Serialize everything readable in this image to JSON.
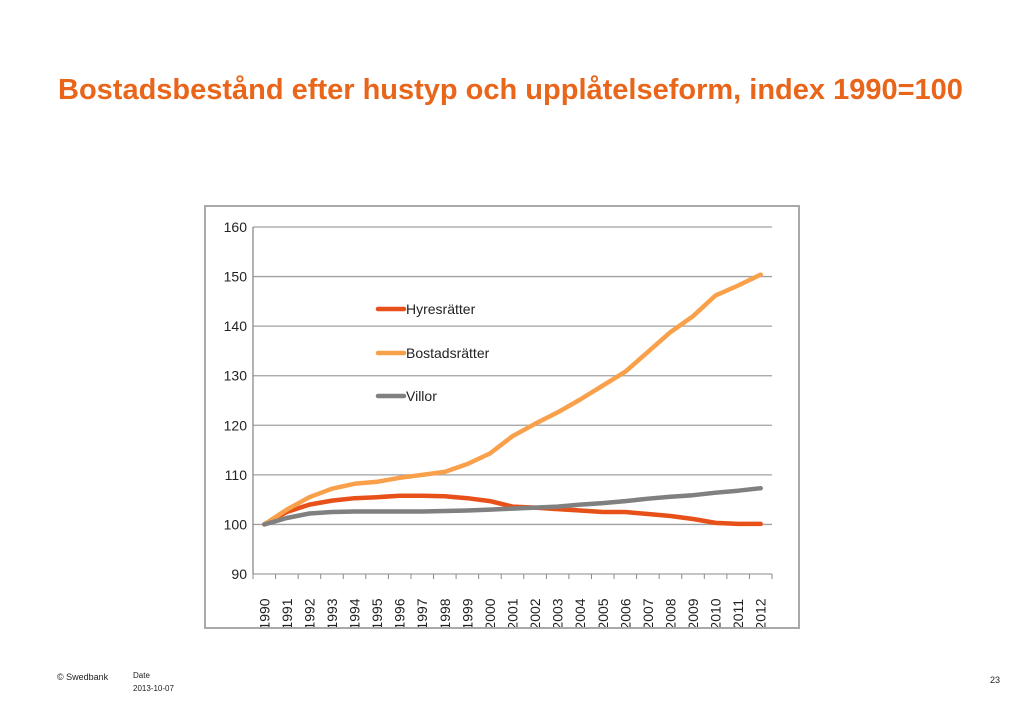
{
  "slide": {
    "title": "Bostadsbestånd efter hustyp och upplåtelseform, index 1990=100",
    "footer_brand": "© Swedbank",
    "footer_date_label": "Date",
    "footer_date": "2013-10-07",
    "page_number": "23"
  },
  "chart_data": {
    "type": "line",
    "title": "",
    "xlabel": "",
    "ylabel": "",
    "categories": [
      "1990",
      "1991",
      "1992",
      "1993",
      "1994",
      "1995",
      "1996",
      "1997",
      "1998",
      "1999",
      "2000",
      "2001",
      "2002",
      "2003",
      "2004",
      "2005",
      "2006",
      "2007",
      "2008",
      "2009",
      "2010",
      "2011",
      "2012"
    ],
    "ylim": [
      90,
      160
    ],
    "yticks": [
      90,
      100,
      110,
      120,
      130,
      140,
      150,
      160
    ],
    "grid": true,
    "legend_position": "top-left-inside",
    "series": [
      {
        "name": "Hyresrätter",
        "color": "#e8501a",
        "values": [
          100,
          102.5,
          104,
          104.8,
          105.3,
          105.5,
          105.8,
          105.8,
          105.7,
          105.3,
          104.7,
          103.6,
          103.4,
          103.1,
          102.8,
          102.5,
          102.5,
          102.1,
          101.7,
          101.1,
          100.3,
          100.1,
          100.1
        ]
      },
      {
        "name": "Bostadsrätter",
        "color": "#f9a04b",
        "values": [
          100,
          103,
          105.5,
          107.2,
          108.2,
          108.6,
          109.4,
          110,
          110.6,
          112.2,
          114.3,
          117.8,
          120.3,
          122.6,
          125.2,
          128,
          130.8,
          134.8,
          138.8,
          142,
          146.2,
          148.2,
          150.4
        ]
      },
      {
        "name": "Villor",
        "color": "#808080",
        "values": [
          100,
          101.3,
          102.2,
          102.5,
          102.6,
          102.6,
          102.6,
          102.6,
          102.7,
          102.8,
          103,
          103.2,
          103.4,
          103.6,
          104,
          104.3,
          104.7,
          105.2,
          105.6,
          105.9,
          106.4,
          106.8,
          107.3
        ]
      }
    ]
  }
}
